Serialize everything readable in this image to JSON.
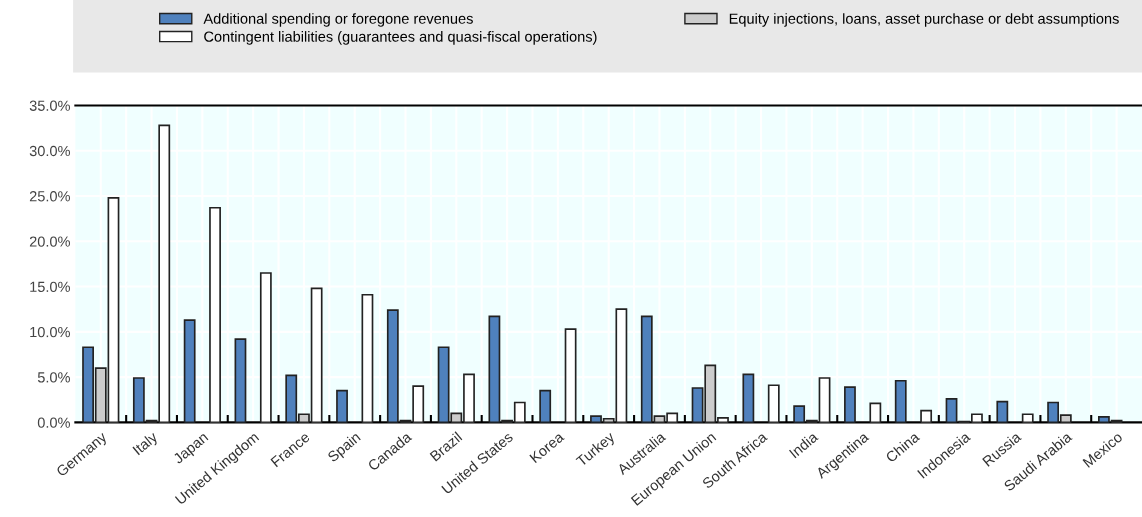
{
  "chart_data": {
    "type": "bar",
    "categories": [
      "Germany",
      "Italy",
      "Japan",
      "United Kingdom",
      "France",
      "Spain",
      "Canada",
      "Brazil",
      "United States",
      "Korea",
      "Turkey",
      "Australia",
      "European Union",
      "South Africa",
      "India",
      "Argentina",
      "China",
      "Indonesia",
      "Russia",
      "Saudi Arabia",
      "Mexico"
    ],
    "series": [
      {
        "name": "Additional spending or foregone revenues",
        "color": "#4f81bd",
        "values": [
          8.3,
          4.9,
          11.3,
          9.2,
          5.2,
          3.5,
          12.4,
          8.3,
          11.7,
          3.5,
          0.7,
          11.7,
          3.8,
          5.3,
          1.8,
          3.9,
          4.6,
          2.6,
          2.3,
          2.2,
          0.6
        ]
      },
      {
        "name": "Equity injections, loans, asset purchase or debt assumptions",
        "color": "#cccccc",
        "values": [
          6.0,
          0.2,
          0,
          0,
          0.9,
          0,
          0.2,
          1.0,
          0.2,
          0,
          0.4,
          0.7,
          6.3,
          0,
          0.2,
          0,
          0,
          0.1,
          0,
          0.8,
          0.2
        ]
      },
      {
        "name": "Contingent liabilities (guarantees and quasi-fiscal operations)",
        "color": "#ffffff",
        "values": [
          24.8,
          32.8,
          23.7,
          16.5,
          14.8,
          14.1,
          4.0,
          5.3,
          2.2,
          10.3,
          12.5,
          1.0,
          0.5,
          4.1,
          4.9,
          2.1,
          1.3,
          0.9,
          0.9,
          0,
          0
        ]
      }
    ],
    "ylim": [
      0,
      35
    ],
    "yticks": [
      {
        "value": 0,
        "label": "0.0%"
      },
      {
        "value": 5,
        "label": "5.0%"
      },
      {
        "value": 10,
        "label": "10.0%"
      },
      {
        "value": 15,
        "label": "15.0%"
      },
      {
        "value": 20,
        "label": "20.0%"
      },
      {
        "value": 25,
        "label": "25.0%"
      },
      {
        "value": 30,
        "label": "30.0%"
      },
      {
        "value": 35,
        "label": "35.0%"
      }
    ],
    "grid": true,
    "legend": "top"
  }
}
